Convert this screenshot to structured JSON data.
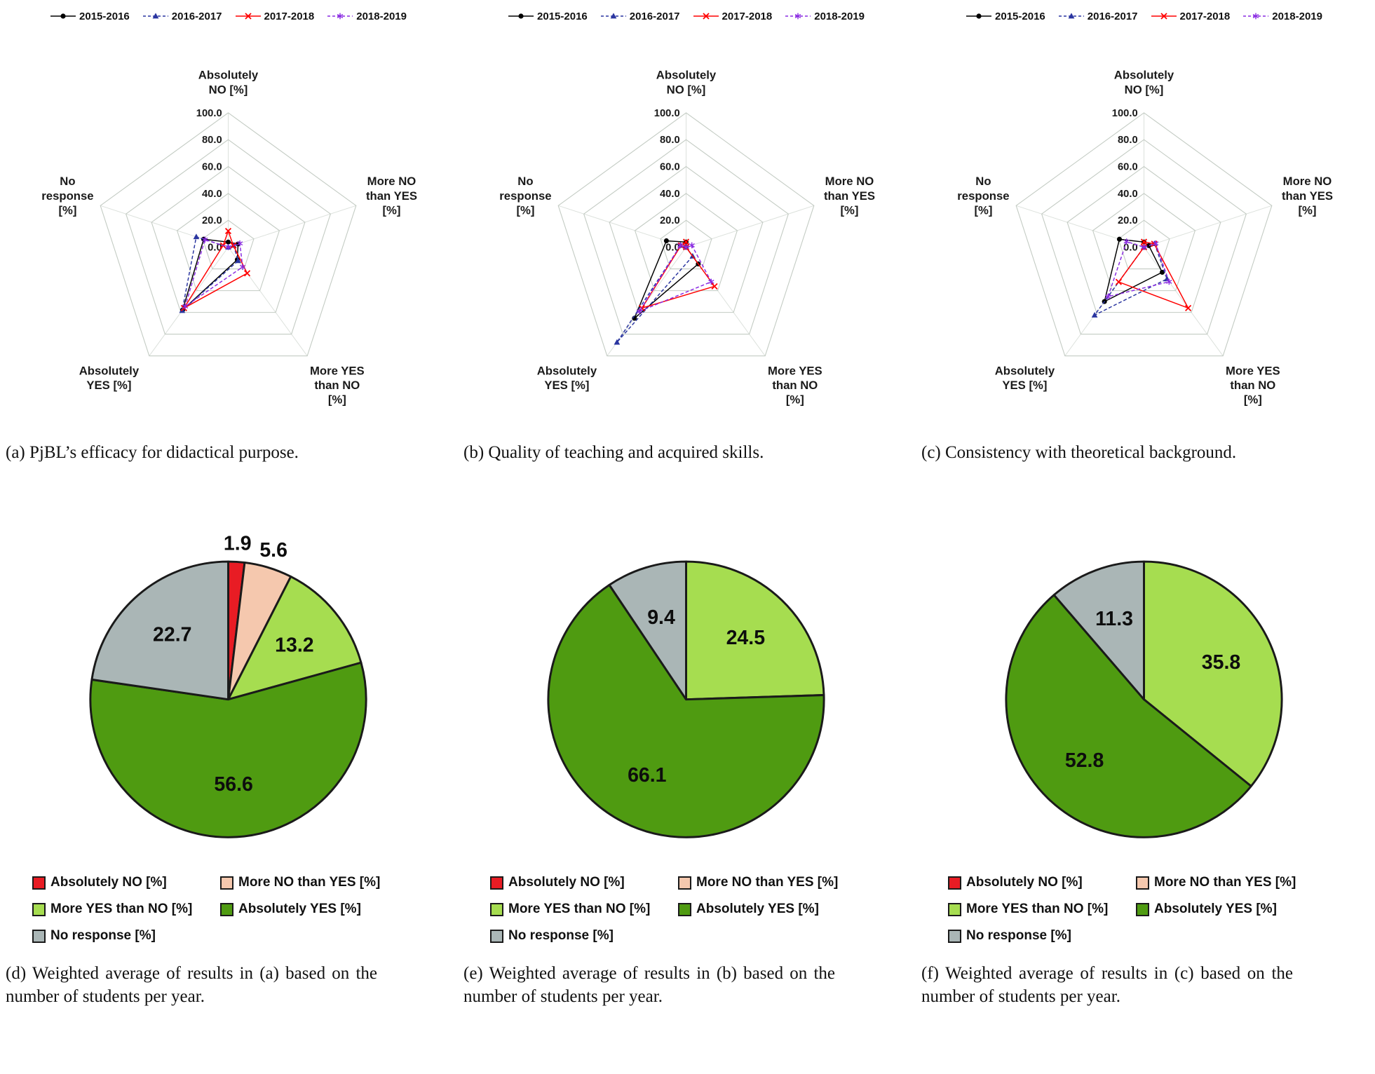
{
  "radar_style": {
    "gridlines": [
      0,
      20,
      40,
      60,
      80,
      100
    ],
    "tick_labels": [
      "0.0",
      "20.0",
      "40.0",
      "60.0",
      "80.0",
      "100.0"
    ],
    "axis_label_lines": [
      [
        "Absolutely",
        "NO [%]"
      ],
      [
        "More NO",
        "than YES",
        "[%]"
      ],
      [
        "More YES",
        "than NO",
        "[%]"
      ],
      [
        "Absolutely",
        "YES [%]"
      ],
      [
        "No",
        "response",
        "[%]"
      ]
    ],
    "series_meta": [
      {
        "name": "2015-2016",
        "color": "#000000",
        "dash": "solid",
        "marker": "circle"
      },
      {
        "name": "2016-2017",
        "color": "#2a35a0",
        "dash": "dashed",
        "marker": "triangle"
      },
      {
        "name": "2017-2018",
        "color": "#ff0000",
        "dash": "solid",
        "marker": "x"
      },
      {
        "name": "2018-2019",
        "color": "#8a2be2",
        "dash": "dashed",
        "marker": "star"
      }
    ]
  },
  "pie_style": {
    "categories": [
      {
        "key": "absolutely-no",
        "label": "Absolutely NO [%]",
        "color": "#e81c24"
      },
      {
        "key": "more-no-than-yes",
        "label": "More NO than YES [%]",
        "color": "#f5c8ae"
      },
      {
        "key": "more-yes-than-no",
        "label": "More YES than NO [%]",
        "color": "#a6dd50"
      },
      {
        "key": "absolutely-yes",
        "label": "Absolutely YES [%]",
        "color": "#4f9b11"
      },
      {
        "key": "no-response",
        "label": "No response [%]",
        "color": "#aab6b6"
      }
    ]
  },
  "chart_data": [
    {
      "id": "a",
      "type": "radar",
      "axes": [
        "Absolutely NO [%]",
        "More NO than YES [%]",
        "More YES than NO [%]",
        "Absolutely YES [%]",
        "No response [%]"
      ],
      "max": 100,
      "series": [
        {
          "name": "2015-2016",
          "values": [
            3.8,
            7.7,
            11.5,
            57.7,
            19.2
          ]
        },
        {
          "name": "2016-2017",
          "values": [
            0.0,
            4.2,
            12.5,
            58.3,
            25.0
          ]
        },
        {
          "name": "2017-2018",
          "values": [
            12.0,
            4.0,
            24.0,
            56.0,
            4.0
          ]
        },
        {
          "name": "2018-2019",
          "values": [
            0.0,
            9.1,
            18.2,
            54.5,
            18.2
          ]
        }
      ]
    },
    {
      "id": "b",
      "type": "radar",
      "axes": [
        "Absolutely NO [%]",
        "More NO than YES [%]",
        "More YES than NO [%]",
        "Absolutely YES [%]",
        "No response [%]"
      ],
      "max": 100,
      "series": [
        {
          "name": "2015-2016",
          "values": [
            3.8,
            0.0,
            15.4,
            65.4,
            15.4
          ]
        },
        {
          "name": "2016-2017",
          "values": [
            0.0,
            0.0,
            8.3,
            87.5,
            4.2
          ]
        },
        {
          "name": "2017-2018",
          "values": [
            4.0,
            0.0,
            36.0,
            56.0,
            4.0
          ]
        },
        {
          "name": "2018-2019",
          "values": [
            0.0,
            4.5,
            31.8,
            59.1,
            4.5
          ]
        }
      ]
    },
    {
      "id": "c",
      "type": "radar",
      "axes": [
        "Absolutely NO [%]",
        "More NO than YES [%]",
        "More YES than NO [%]",
        "Absolutely YES [%]",
        "No response [%]"
      ],
      "max": 100,
      "series": [
        {
          "name": "2015-2016",
          "values": [
            3.8,
            3.8,
            23.1,
            50.0,
            19.2
          ]
        },
        {
          "name": "2016-2017",
          "values": [
            0.0,
            8.3,
            29.2,
            62.5,
            0.0
          ]
        },
        {
          "name": "2017-2018",
          "values": [
            4.0,
            8.0,
            56.0,
            32.0,
            0.0
          ]
        },
        {
          "name": "2018-2019",
          "values": [
            0.0,
            9.1,
            31.8,
            45.5,
            13.6
          ]
        }
      ]
    },
    {
      "id": "d",
      "type": "pie",
      "categories": [
        "Absolutely NO [%]",
        "More NO than YES [%]",
        "More YES than NO [%]",
        "Absolutely YES [%]",
        "No response [%]"
      ],
      "values": [
        1.9,
        5.6,
        13.2,
        56.6,
        22.7
      ]
    },
    {
      "id": "e",
      "type": "pie",
      "categories": [
        "Absolutely NO [%]",
        "More NO than YES [%]",
        "More YES than NO [%]",
        "Absolutely YES [%]",
        "No response [%]"
      ],
      "values": [
        0,
        0,
        24.5,
        66.1,
        9.4
      ]
    },
    {
      "id": "f",
      "type": "pie",
      "categories": [
        "Absolutely NO [%]",
        "More NO than YES [%]",
        "More YES than NO [%]",
        "Absolutely YES [%]",
        "No response [%]"
      ],
      "values": [
        0,
        0,
        35.8,
        52.8,
        11.3
      ]
    }
  ],
  "captions": {
    "a": "(a) PjBL’s efficacy for didactical purpose.",
    "b": "(b) Quality of teaching and acquired skills.",
    "c": "(c) Consistency with theoretical background.",
    "d": "(d) Weighted average of results in (a) based on the number of students per year.",
    "e": "(e) Weighted average of results in (b) based on the number of students per year.",
    "f": "(f) Weighted average of results in (c) based on the number of students per year."
  }
}
